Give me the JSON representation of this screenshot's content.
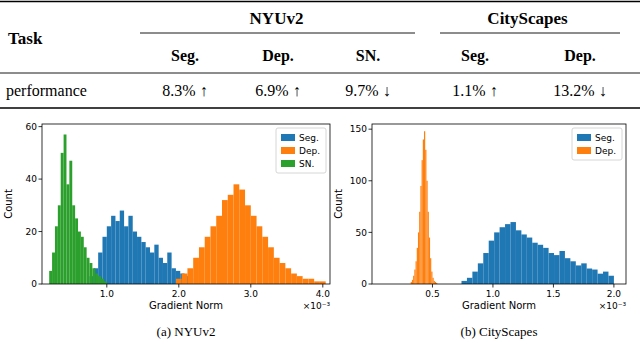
{
  "table": {
    "header_label": "Task",
    "groups": [
      {
        "label": "NYUv2",
        "columns": [
          "Seg.",
          "Dep.",
          "SN."
        ]
      },
      {
        "label": "CityScapes",
        "columns": [
          "Seg.",
          "Dep."
        ]
      }
    ],
    "rows": [
      [
        "performance",
        "8.3% ↑",
        "6.9% ↑",
        "9.7% ↓",
        "1.1% ↑",
        "13.2% ↓"
      ]
    ]
  },
  "chart_data": [
    {
      "type": "histogram",
      "title": "(a) NYUv2",
      "xlabel": "Gradient Norm",
      "ylabel": "Count",
      "annotations": [
        "×10⁻³"
      ],
      "legend": "upper right",
      "grid": false,
      "xlim": [
        0.1,
        4.1
      ],
      "ylim": [
        0,
        61
      ],
      "xticks": [
        {
          "value": 1,
          "label": "1.0"
        },
        {
          "value": 2,
          "label": "2.0"
        },
        {
          "value": 3,
          "label": "3.0"
        },
        {
          "value": 4,
          "label": "4.0"
        }
      ],
      "yticks": [
        0,
        20,
        40,
        60
      ],
      "series": [
        {
          "name": "Seg.",
          "color": "#1f77b4",
          "bins": [
            0.76,
            0.82,
            0.88,
            0.94,
            1.0,
            1.06,
            1.12,
            1.18,
            1.24,
            1.3,
            1.36,
            1.42,
            1.48,
            1.54,
            1.6,
            1.66,
            1.72,
            1.78,
            1.84,
            1.9,
            1.96,
            2.02,
            2.08,
            2.14,
            2.2
          ],
          "values": [
            3,
            6,
            12,
            18,
            22,
            26,
            24,
            28,
            22,
            26,
            20,
            18,
            16,
            14,
            12,
            15,
            10,
            8,
            12,
            6,
            5,
            4,
            3,
            2
          ]
        },
        {
          "name": "Dep.",
          "color": "#ff7f0e",
          "bins": [
            1.96,
            2.04,
            2.12,
            2.2,
            2.28,
            2.36,
            2.44,
            2.52,
            2.6,
            2.68,
            2.76,
            2.84,
            2.92,
            3.0,
            3.08,
            3.16,
            3.24,
            3.32,
            3.4,
            3.48,
            3.56,
            3.64,
            3.72,
            3.8,
            3.88,
            3.96,
            4.04
          ],
          "values": [
            2,
            4,
            6,
            10,
            14,
            18,
            22,
            26,
            32,
            34,
            38,
            36,
            30,
            26,
            22,
            18,
            14,
            10,
            8,
            6,
            4,
            3,
            2,
            2,
            1,
            1
          ]
        },
        {
          "name": "SN.",
          "color": "#2ca02c",
          "bins": [
            0.2,
            0.24,
            0.28,
            0.32,
            0.36,
            0.4,
            0.44,
            0.48,
            0.52,
            0.56,
            0.6,
            0.64,
            0.68,
            0.72,
            0.76,
            0.8,
            0.84,
            0.88,
            0.92,
            0.96,
            1.0
          ],
          "values": [
            5,
            12,
            22,
            30,
            50,
            57,
            38,
            47,
            30,
            25,
            20,
            18,
            14,
            10,
            8,
            6,
            4,
            3,
            2,
            1
          ]
        }
      ]
    },
    {
      "type": "histogram",
      "title": "(b) CityScapes",
      "xlabel": "Gradient Norm",
      "ylabel": "Count",
      "annotations": [
        "×10⁻³"
      ],
      "legend": "upper right",
      "grid": false,
      "xlim": [
        0.0,
        2.1
      ],
      "ylim": [
        0,
        155
      ],
      "xticks": [
        0.5,
        {
          "value": 1,
          "label": "1.0"
        },
        1.5,
        {
          "value": 2,
          "label": "2.0"
        }
      ],
      "yticks": [
        0,
        50,
        100,
        150
      ],
      "series": [
        {
          "name": "Seg.",
          "color": "#1f77b4",
          "bins": [
            0.74,
            0.785,
            0.83,
            0.875,
            0.92,
            0.965,
            1.01,
            1.055,
            1.1,
            1.145,
            1.19,
            1.235,
            1.28,
            1.325,
            1.37,
            1.415,
            1.46,
            1.505,
            1.55,
            1.595,
            1.64,
            1.685,
            1.73,
            1.775,
            1.82,
            1.865,
            1.91,
            1.955,
            2.0
          ],
          "values": [
            3,
            6,
            12,
            20,
            30,
            42,
            50,
            55,
            58,
            60,
            52,
            48,
            45,
            40,
            38,
            35,
            30,
            28,
            32,
            25,
            22,
            18,
            20,
            15,
            14,
            10,
            12,
            8
          ]
        },
        {
          "name": "Dep.",
          "color": "#ff7f0e",
          "bins": [
            0.32,
            0.33,
            0.34,
            0.35,
            0.36,
            0.37,
            0.38,
            0.39,
            0.4,
            0.41,
            0.42,
            0.43,
            0.44,
            0.45,
            0.46,
            0.47,
            0.48,
            0.49,
            0.5,
            0.51,
            0.52,
            0.53,
            0.54
          ],
          "values": [
            2,
            4,
            8,
            14,
            22,
            35,
            50,
            70,
            95,
            120,
            140,
            148,
            130,
            100,
            70,
            45,
            25,
            12,
            6,
            3,
            2,
            1
          ]
        }
      ]
    }
  ]
}
